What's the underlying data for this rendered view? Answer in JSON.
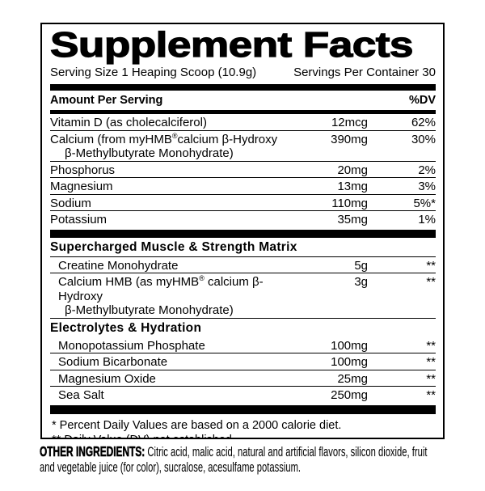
{
  "colors": {
    "ink": "#000000",
    "paper": "#ffffff"
  },
  "panel": {
    "title": "Supplement Facts",
    "serving_size": "Serving Size 1 Heaping Scoop (10.9g)",
    "servings_per_container": "Servings Per Container 30",
    "columns": {
      "amount": "Amount Per Serving",
      "dv": "%DV"
    },
    "main_rows": [
      {
        "name": "Vitamin D (as cholecalciferol)",
        "amount": "12mcg",
        "dv": "62%"
      },
      {
        "line1_pre": "Calcium (from myHMB",
        "sup": "®",
        "line1_post": "calcium β-Hydroxy",
        "line2": "β-Methylbutyrate Monohydrate)",
        "amount": "390mg",
        "dv": "30%"
      },
      {
        "name": "Phosphorus",
        "amount": "20mg",
        "dv": "2%"
      },
      {
        "name": "Magnesium",
        "amount": "13mg",
        "dv": "3%"
      },
      {
        "name": "Sodium",
        "amount": "110mg",
        "dv": "5%*"
      },
      {
        "name": "Potassium",
        "amount": "35mg",
        "dv": "1%"
      }
    ],
    "matrix": {
      "header": "Supercharged Muscle & Strength Matrix",
      "rows": [
        {
          "name": "Creatine Monohydrate",
          "amount": "5g",
          "dv": "**"
        },
        {
          "line1_pre": "Calcium HMB (as myHMB",
          "sup": "®",
          "line1_post": " calcium β-Hydroxy",
          "line2": "β-Methylbutyrate Monohydrate)",
          "amount": "3g",
          "dv": "**"
        }
      ]
    },
    "electrolytes": {
      "header": "Electrolytes & Hydration",
      "rows": [
        {
          "name": "Monopotassium Phosphate",
          "amount": "100mg",
          "dv": "**"
        },
        {
          "name": "Sodium Bicarbonate",
          "amount": "100mg",
          "dv": "**"
        },
        {
          "name": "Magnesium Oxide",
          "amount": "25mg",
          "dv": "**"
        },
        {
          "name": "Sea Salt",
          "amount": "250mg",
          "dv": "**"
        }
      ]
    },
    "footnotes": [
      "* Percent Daily Values are based on a 2000 calorie diet.",
      "** Daily Value (DV) not established."
    ]
  },
  "other_ingredients": {
    "label": "OTHER INGREDIENTS:",
    "text": " Citric acid, malic acid, natural and artificial flavors, silicon dioxide, fruit and vegetable juice (for color), sucralose, acesulfame potassium."
  }
}
